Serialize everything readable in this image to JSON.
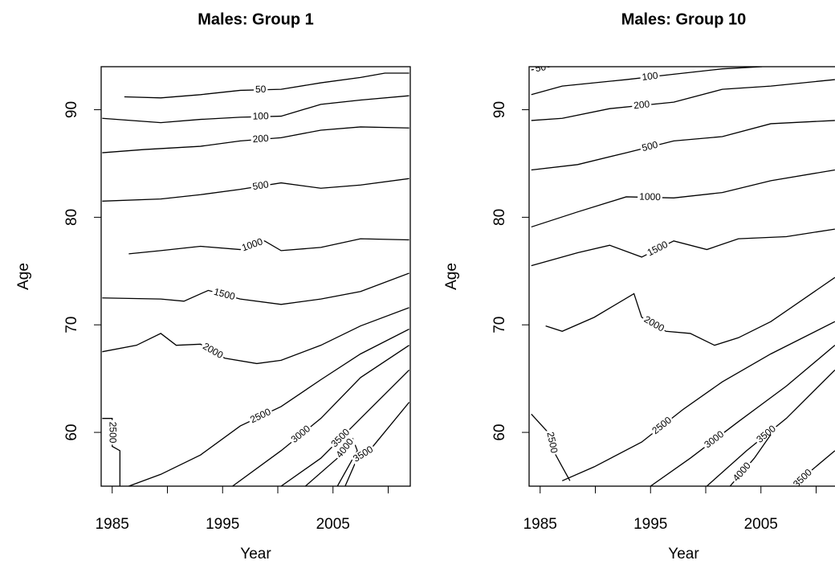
{
  "chart_data": [
    {
      "type": "contour",
      "title": "Males: Group 1",
      "xlabel": "Year",
      "ylabel": "Age",
      "xlim": [
        1984,
        2012
      ],
      "ylim": [
        55,
        94
      ],
      "xticks": [
        1985,
        1995,
        2005
      ],
      "xminorticks": [
        1990,
        2000,
        2010
      ],
      "yticks": [
        60,
        70,
        80,
        90
      ],
      "contours": [
        {
          "level": 50,
          "x": [
            1986.1,
            1989.4,
            1993,
            1996.6,
            2000.3,
            2003.9,
            2007.5,
            2009.7,
            2011.9
          ],
          "y": [
            91.2,
            91.1,
            91.4,
            91.8,
            91.9,
            92.5,
            93.0,
            93.4,
            93.4
          ]
        },
        {
          "level": 100,
          "x": [
            1984.1,
            1989.4,
            1993,
            1996.6,
            2000.3,
            2003.9,
            2007.5,
            2011.9
          ],
          "y": [
            89.2,
            88.8,
            89.1,
            89.3,
            89.4,
            90.5,
            90.9,
            91.3
          ]
        },
        {
          "level": 200,
          "x": [
            1984.1,
            1987.9,
            1993,
            1996.6,
            2000.3,
            2003.9,
            2007.5,
            2011.9
          ],
          "y": [
            86.0,
            86.3,
            86.6,
            87.1,
            87.4,
            88.1,
            88.4,
            88.3
          ]
        },
        {
          "level": 500,
          "x": [
            1984.1,
            1989.4,
            1993,
            1996.6,
            2000.3,
            2003.9,
            2007.5,
            2011.9
          ],
          "y": [
            81.5,
            81.7,
            82.1,
            82.6,
            83.2,
            82.7,
            83.0,
            83.6
          ]
        },
        {
          "level": 1000,
          "x": [
            1986.5,
            1989.4,
            1993,
            1996.6,
            1998.8,
            2000.3,
            2003.9,
            2007.5,
            2011.9
          ],
          "y": [
            76.6,
            76.9,
            77.3,
            77.0,
            77.8,
            76.9,
            77.2,
            78.0,
            77.9
          ]
        },
        {
          "level": 1500,
          "x": [
            1984.1,
            1989.4,
            1991.5,
            1993.7,
            1996.6,
            2000.3,
            2003.9,
            2007.5,
            2011.9
          ],
          "y": [
            72.5,
            72.4,
            72.2,
            73.2,
            72.4,
            71.9,
            72.4,
            73.1,
            74.8
          ]
        },
        {
          "level": 2000,
          "x": [
            1984.1,
            1987.2,
            1989.4,
            1990.8,
            1993,
            1995.2,
            1998.1,
            2000.3,
            2003.9,
            2007.5,
            2011.9
          ],
          "y": [
            67.5,
            68.1,
            69.2,
            68.1,
            68.2,
            66.9,
            66.4,
            66.7,
            68.1,
            69.9,
            71.6
          ]
        },
        {
          "level": 2500,
          "x": [
            1986.5,
            1989.4,
            1993,
            1996.6,
            2000.3,
            2003.9,
            2007.5,
            2011.9
          ],
          "y": [
            55.0,
            56.1,
            57.9,
            60.6,
            62.4,
            64.9,
            67.3,
            69.6
          ]
        },
        {
          "level": 2500,
          "x": [
            1984.1,
            1985,
            1985,
            1985.7,
            1985.7
          ],
          "y": [
            61.3,
            61.3,
            58.7,
            58.3,
            55.0
          ]
        },
        {
          "level": 3000,
          "x": [
            1995.9,
            2000.3,
            2003.9,
            2007.5,
            2011.9
          ],
          "y": [
            55.0,
            58.3,
            61.3,
            65.1,
            68.1
          ]
        },
        {
          "level": 3500,
          "x": [
            2000.3,
            2003.9,
            2007.5,
            2011.9
          ],
          "y": [
            55.0,
            57.6,
            61.3,
            65.8
          ]
        },
        {
          "level": 4000,
          "x": [
            2002.5,
            2005.4,
            2006.8,
            2007.2,
            2005.4
          ],
          "y": [
            55.0,
            57.6,
            59.4,
            58.3,
            55.0
          ]
        },
        {
          "level": 3500,
          "x": [
            2006.1,
            2007.2,
            2008.3,
            2011.9
          ],
          "y": [
            55.0,
            57.6,
            58.3,
            62.8
          ]
        }
      ]
    },
    {
      "type": "contour",
      "title": "Males: Group 10",
      "xlabel": "Year",
      "ylabel": "Age",
      "xlim": [
        1984,
        2012
      ],
      "ylim": [
        55,
        94
      ],
      "xticks": [
        1985,
        1995,
        2005
      ],
      "xminorticks": [
        1990,
        2000,
        2010
      ],
      "yticks": [
        60,
        70,
        80,
        90
      ],
      "contours": [
        {
          "level": 50,
          "x": [
            1984.2,
            1985.9
          ],
          "y": [
            93.7,
            94.0
          ]
        },
        {
          "level": 100,
          "x": [
            1984.2,
            1987.0,
            1992.8,
            1997.1,
            2001.5,
            2005.1
          ],
          "y": [
            91.4,
            92.2,
            92.8,
            93.3,
            93.8,
            94.0
          ]
        },
        {
          "level": 200,
          "x": [
            1984.2,
            1987.0,
            1991.3,
            1997.1,
            2001.5,
            2005.9,
            2011.7
          ],
          "y": [
            89.0,
            89.2,
            90.1,
            90.7,
            91.9,
            92.2,
            92.8
          ]
        },
        {
          "level": 500,
          "x": [
            1984.2,
            1988.4,
            1992.8,
            1997.1,
            2001.5,
            2005.9,
            2011.7
          ],
          "y": [
            84.4,
            84.9,
            86.0,
            87.1,
            87.5,
            88.7,
            89.0
          ]
        },
        {
          "level": 1000,
          "x": [
            1984.2,
            1988.4,
            1992.8,
            1997.1,
            2001.5,
            2005.9,
            2011.7
          ],
          "y": [
            79.1,
            80.5,
            81.9,
            81.8,
            82.3,
            83.4,
            84.4
          ]
        },
        {
          "level": 1500,
          "x": [
            1984.2,
            1988.4,
            1991.3,
            1994.2,
            1997.1,
            2000.1,
            2002.96,
            2007.3,
            2011.7
          ],
          "y": [
            75.5,
            76.7,
            77.4,
            76.3,
            77.8,
            77.0,
            78.0,
            78.2,
            78.9
          ]
        },
        {
          "level": 2000,
          "x": [
            1985.5,
            1987.0,
            1989.9,
            1993.5,
            1994.2,
            1996.4,
            1998.6,
            2000.8,
            2002.96,
            2005.9,
            2011.7
          ],
          "y": [
            69.9,
            69.4,
            70.7,
            72.9,
            70.7,
            69.4,
            69.2,
            68.1,
            68.8,
            70.3,
            74.4
          ]
        },
        {
          "level": 2500,
          "x": [
            1987.0,
            1989.9,
            1994.2,
            1997.9,
            2001.5,
            2005.9,
            2011.7
          ],
          "y": [
            55.5,
            56.8,
            59.1,
            62.1,
            64.7,
            67.3,
            70.3
          ]
        },
        {
          "level": 2500,
          "x": [
            1984.2,
            1985.9,
            1986.2,
            1987.0,
            1987.7
          ],
          "y": [
            61.7,
            59.8,
            58.3,
            56.8,
            55.5
          ]
        },
        {
          "level": 3000,
          "x": [
            1995.0,
            1998.6,
            2002.96,
            2007.3,
            2011.7
          ],
          "y": [
            55.0,
            57.6,
            61.0,
            64.3,
            68.1
          ]
        },
        {
          "level": 3500,
          "x": [
            2000.1,
            2003.7,
            2007.3,
            2011.7
          ],
          "y": [
            55.0,
            58.3,
            61.3,
            65.8
          ]
        },
        {
          "level": 4000,
          "x": [
            2002.2,
            2004.4,
            2005.9
          ],
          "y": [
            55.0,
            57.6,
            59.8
          ]
        },
        {
          "level": 3500,
          "x": [
            2008.1,
            2009.5,
            2011.7
          ],
          "y": [
            55.0,
            56.4,
            58.3
          ]
        }
      ]
    }
  ]
}
